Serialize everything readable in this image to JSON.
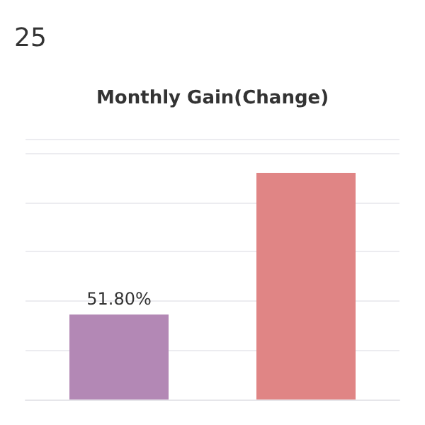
{
  "chart_data": {
    "type": "bar",
    "title": "Monthly Gain(Change)",
    "annotations": [
      "25"
    ],
    "categories": [
      null,
      null
    ],
    "values": [
      51.8,
      138
    ],
    "colors": [
      "#b388b5",
      "#e08585"
    ],
    "value_labels": [
      "51.80%",
      null
    ],
    "grid": "y"
  }
}
